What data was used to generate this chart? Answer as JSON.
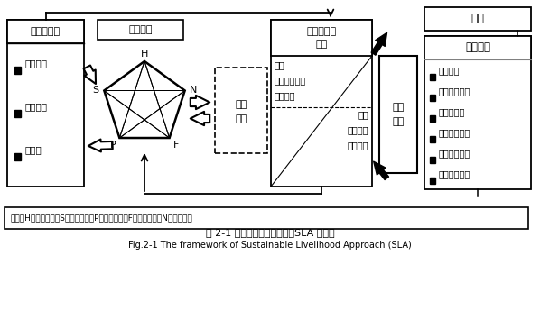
{
  "title_cn": "图 2-1 可持续生计分析框架（SLA 框架）",
  "title_en": "Fig.2-1 The framework of Sustainable Livelihood Approach (SLA)",
  "note": "备注：H：人力资本；S：社会资本；P：物质资本；F：金融资本；N：自然资本",
  "box1_title": "脆弱性背景",
  "box1_items": [
    "外部冲击",
    "发展趋势",
    "季节性"
  ],
  "box2_title": "生计资本",
  "pentagon_labels": [
    "H",
    "S",
    "N",
    "F",
    "P"
  ],
  "middle_label": "影响\n响应",
  "box3_title": "结构和过程\n转变",
  "box3_top": [
    "结构",
    "政府管理水平",
    "私人财产"
  ],
  "box3_bottom": [
    "过程",
    "法律政策",
    "文化制度"
  ],
  "box4_label": "生计\n策略",
  "box5_title": "目标",
  "box6_title": "生计结果",
  "box6_items": [
    "收入增加",
    "生活水平提高",
    "脆弱性降低",
    "食物安全增加",
    "资料利用优化",
    "生态环境改善"
  ]
}
